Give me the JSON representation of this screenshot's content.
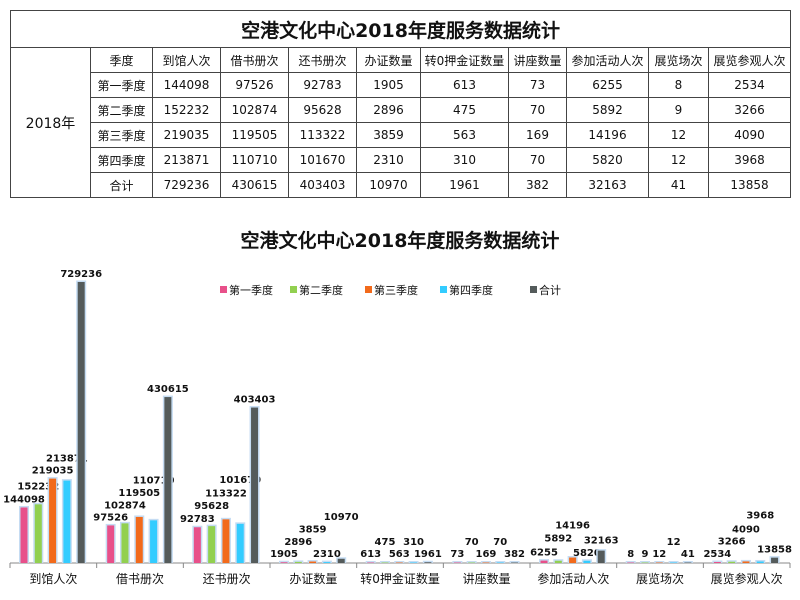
{
  "table": {
    "title": "空港文化中心2018年度服务数据统计",
    "year": "2018年",
    "headers": [
      "季度",
      "到馆人次",
      "借书册次",
      "还书册次",
      "办证数量",
      "转0押金证数量",
      "讲座数量",
      "参加活动人次",
      "展览场次",
      "展览参观人次"
    ],
    "rows": [
      [
        "第一季度",
        "144098",
        "97526",
        "92783",
        "1905",
        "613",
        "73",
        "6255",
        "8",
        "2534"
      ],
      [
        "第二季度",
        "152232",
        "102874",
        "95628",
        "2896",
        "475",
        "70",
        "5892",
        "9",
        "3266"
      ],
      [
        "第三季度",
        "219035",
        "119505",
        "113322",
        "3859",
        "563",
        "169",
        "14196",
        "12",
        "4090"
      ],
      [
        "第四季度",
        "213871",
        "110710",
        "101670",
        "2310",
        "310",
        "70",
        "5820",
        "12",
        "3968"
      ],
      [
        "合计",
        "729236",
        "430615",
        "403403",
        "10970",
        "1961",
        "382",
        "32163",
        "41",
        "13858"
      ]
    ]
  },
  "chart_data": {
    "type": "bar",
    "title": "空港文化中心2018年度服务数据统计",
    "categories": [
      "到馆人次",
      "借书册次",
      "还书册次",
      "办证数量",
      "转0押金证数量",
      "讲座数量",
      "参加活动人次",
      "展览场次",
      "展览参观人次"
    ],
    "series": [
      {
        "name": "第一季度",
        "color": "#e8508a",
        "values": [
          144098,
          97526,
          92783,
          1905,
          613,
          73,
          6255,
          8,
          2534
        ]
      },
      {
        "name": "第二季度",
        "color": "#92d050",
        "values": [
          152232,
          102874,
          95628,
          2896,
          475,
          70,
          5892,
          9,
          3266
        ]
      },
      {
        "name": "第三季度",
        "color": "#f26a1b",
        "values": [
          219035,
          119505,
          113322,
          3859,
          563,
          169,
          14196,
          12,
          4090
        ]
      },
      {
        "name": "第四季度",
        "color": "#33ccff",
        "values": [
          213871,
          110710,
          101670,
          2310,
          310,
          70,
          5820,
          12,
          3968
        ]
      },
      {
        "name": "合计",
        "color": "#545b5b",
        "values": [
          729236,
          430615,
          403403,
          10970,
          1961,
          382,
          32163,
          41,
          13858
        ]
      }
    ],
    "legend": "top",
    "grid": false,
    "ylim": [
      0,
      729236
    ]
  }
}
